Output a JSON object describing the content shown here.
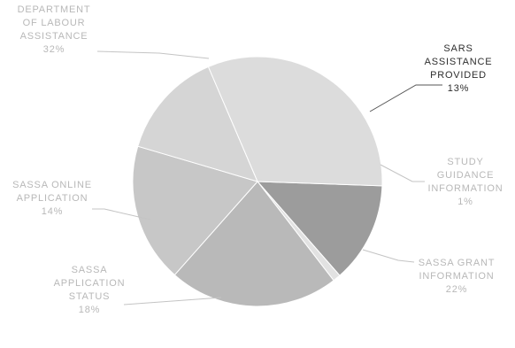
{
  "chart_data": {
    "type": "pie",
    "title": "",
    "legend": "none",
    "slices": [
      {
        "label": [
          "SARS",
          "ASSISTANCE",
          "PROVIDED"
        ],
        "value": 13,
        "value_label": "13%",
        "color": "#9c9c9c",
        "label_style": "dark"
      },
      {
        "label": [
          "STUDY",
          "GUIDANCE",
          "INFORMATION"
        ],
        "value": 1,
        "value_label": "1%",
        "color": "#e2e2e2",
        "label_style": "faint"
      },
      {
        "label": [
          "SASSA GRANT",
          "INFORMATION"
        ],
        "value": 22,
        "value_label": "22%",
        "color": "#b9b9b9",
        "label_style": "faint"
      },
      {
        "label": [
          "SASSA",
          "APPLICATION",
          "STATUS"
        ],
        "value": 18,
        "value_label": "18%",
        "color": "#c7c7c7",
        "label_style": "faint"
      },
      {
        "label": [
          "SASSA ONLINE",
          "APPLICATION"
        ],
        "value": 14,
        "value_label": "14%",
        "color": "#d5d5d5",
        "label_style": "faint"
      },
      {
        "label": [
          "DEPARTMENT",
          "OF LABOUR",
          "ASSISTANCE"
        ],
        "value": 32,
        "value_label": "32%",
        "color": "#dcdcdc",
        "label_style": "faint"
      }
    ]
  }
}
